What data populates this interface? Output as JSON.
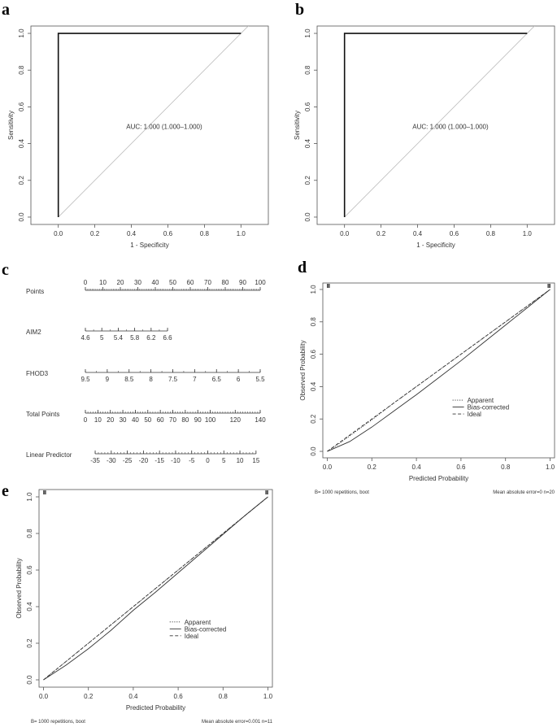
{
  "chart_data": [
    {
      "panel": "a",
      "type": "line",
      "xlabel": "1 - Specificity",
      "ylabel": "Sensitivity",
      "xlim": [
        -0.15,
        1.15
      ],
      "ylim": [
        -0.04,
        1.04
      ],
      "xticks": [
        "0.0",
        "0.2",
        "0.4",
        "0.6",
        "0.8",
        "1.0"
      ],
      "yticks": [
        "0.0",
        "0.2",
        "0.4",
        "0.6",
        "0.8",
        "1.0"
      ],
      "series": [
        {
          "x": [
            0,
            0,
            1
          ],
          "y": [
            0,
            1,
            1
          ]
        }
      ],
      "reference_line": {
        "x": [
          0,
          1.15
        ],
        "y": [
          0,
          1.15
        ]
      },
      "annotation": "AUC: 1.000 (1.000–1.000)",
      "annotation_pos": [
        0.58,
        0.48
      ]
    },
    {
      "panel": "b",
      "type": "line",
      "xlabel": "1 - Specificity",
      "ylabel": "Sensitivity",
      "xlim": [
        -0.15,
        1.15
      ],
      "ylim": [
        -0.04,
        1.04
      ],
      "xticks": [
        "0.0",
        "0.2",
        "0.4",
        "0.6",
        "0.8",
        "1.0"
      ],
      "yticks": [
        "0.0",
        "0.2",
        "0.4",
        "0.6",
        "0.8",
        "1.0"
      ],
      "series": [
        {
          "x": [
            0,
            0,
            1
          ],
          "y": [
            0,
            1,
            1
          ]
        }
      ],
      "reference_line": {
        "x": [
          0,
          1.15
        ],
        "y": [
          0,
          1.15
        ]
      },
      "annotation": "AUC: 1.000 (1.000–1.000)",
      "annotation_pos": [
        0.58,
        0.48
      ]
    },
    {
      "panel": "c",
      "type": "nomogram",
      "rows": [
        {
          "name": "Points",
          "ticks": [
            "0",
            "10",
            "20",
            "30",
            "40",
            "50",
            "60",
            "70",
            "80",
            "90",
            "100"
          ],
          "positions": [
            0,
            10,
            20,
            30,
            40,
            50,
            60,
            70,
            80,
            90,
            100
          ],
          "minor": 100
        },
        {
          "name": "AIM2",
          "ticks": [
            "4.6",
            "5",
            "5.4",
            "5.8",
            "6.2",
            "6.6"
          ],
          "positions": [
            0,
            9.4,
            18.8,
            28.2,
            37.6,
            47
          ],
          "minor": 10
        },
        {
          "name": "FHOD3",
          "ticks": [
            "9.5",
            "9",
            "8.5",
            "8",
            "7.5",
            "7",
            "6.5",
            "6",
            "5.5"
          ],
          "positions": [
            0,
            12.5,
            25,
            37.5,
            50,
            62.5,
            75,
            87.5,
            100
          ],
          "minor": 16
        },
        {
          "name": "Total Points",
          "ticks": [
            "0",
            "10",
            "20",
            "30",
            "40",
            "50",
            "60",
            "70",
            "80",
            "90",
            "100",
            "120",
            "140"
          ],
          "positions": [
            0,
            7.14,
            14.29,
            21.43,
            28.57,
            35.71,
            42.86,
            50,
            57.14,
            64.29,
            71.43,
            85.71,
            100
          ],
          "minor": 70
        },
        {
          "name": "Linear Predictor",
          "ticks": [
            "-35",
            "-30",
            "-25",
            "-20",
            "-15",
            "-10",
            "-5",
            "0",
            "5",
            "10",
            "15"
          ],
          "positions": [
            5.6,
            14.8,
            24,
            33.2,
            42.4,
            51.6,
            60.8,
            70,
            79.2,
            88.4,
            97.6
          ],
          "minor": 50
        }
      ]
    },
    {
      "panel": "d",
      "type": "line",
      "xlabel": "Predicted Probability",
      "ylabel": "Observed Probability",
      "xlim": [
        -0.02,
        1.02
      ],
      "ylim": [
        -0.04,
        1.04
      ],
      "xticks": [
        "0.0",
        "0.2",
        "0.4",
        "0.6",
        "0.8",
        "1.0"
      ],
      "yticks": [
        "0.0",
        "0.2",
        "0.4",
        "0.6",
        "0.8",
        "1.0"
      ],
      "series": [
        {
          "name": "Apparent",
          "style": "dotted",
          "x": [
            0,
            0.05,
            0.1,
            0.2,
            0.3,
            0.4,
            0.5,
            0.6,
            0.7,
            0.8,
            0.9,
            1.0
          ],
          "y": [
            0,
            0.045,
            0.095,
            0.195,
            0.3,
            0.4,
            0.5,
            0.6,
            0.7,
            0.8,
            0.9,
            1.0
          ]
        },
        {
          "name": "Bias-corrected",
          "style": "solid",
          "x": [
            0,
            0.05,
            0.1,
            0.2,
            0.3,
            0.4,
            0.5,
            0.6,
            0.7,
            0.8,
            0.9,
            1.0
          ],
          "y": [
            0,
            0.03,
            0.06,
            0.15,
            0.25,
            0.35,
            0.455,
            0.56,
            0.67,
            0.78,
            0.89,
            1.0
          ]
        },
        {
          "name": "Ideal",
          "style": "dashed",
          "x": [
            0,
            1
          ],
          "y": [
            0,
            1
          ]
        }
      ],
      "rug_left": 0.005,
      "rug_right": 0.995,
      "footer_left": "B= 1000 repetitions, boot",
      "footer_right": "Mean absolute error=0 n=20"
    },
    {
      "panel": "e",
      "type": "line",
      "xlabel": "Predicted Probability",
      "ylabel": "Observed Probability",
      "xlim": [
        -0.02,
        1.02
      ],
      "ylim": [
        -0.04,
        1.04
      ],
      "xticks": [
        "0.0",
        "0.2",
        "0.4",
        "0.6",
        "0.8",
        "1.0"
      ],
      "yticks": [
        "0.0",
        "0.2",
        "0.4",
        "0.6",
        "0.8",
        "1.0"
      ],
      "series": [
        {
          "name": "Apparent",
          "style": "dotted",
          "x": [
            0,
            0.1,
            0.2,
            0.3,
            0.4,
            0.5,
            0.6,
            0.7,
            0.8,
            0.9,
            1.0
          ],
          "y": [
            0,
            0.1,
            0.2,
            0.3,
            0.4,
            0.5,
            0.6,
            0.7,
            0.8,
            0.9,
            1.0
          ]
        },
        {
          "name": "Bias-corrected",
          "style": "solid",
          "x": [
            0,
            0.1,
            0.2,
            0.3,
            0.4,
            0.5,
            0.6,
            0.7,
            0.8,
            0.9,
            1.0
          ],
          "y": [
            0,
            0.08,
            0.17,
            0.27,
            0.38,
            0.48,
            0.585,
            0.69,
            0.795,
            0.9,
            1.0
          ]
        },
        {
          "name": "Ideal",
          "style": "dashed",
          "x": [
            0,
            1
          ],
          "y": [
            0,
            1
          ]
        }
      ],
      "rug_left": 0.005,
      "rug_right": 0.995,
      "footer_left": "B= 1000 repetitions, boot",
      "footer_right": "Mean absolute error=0.001 n=11"
    }
  ]
}
